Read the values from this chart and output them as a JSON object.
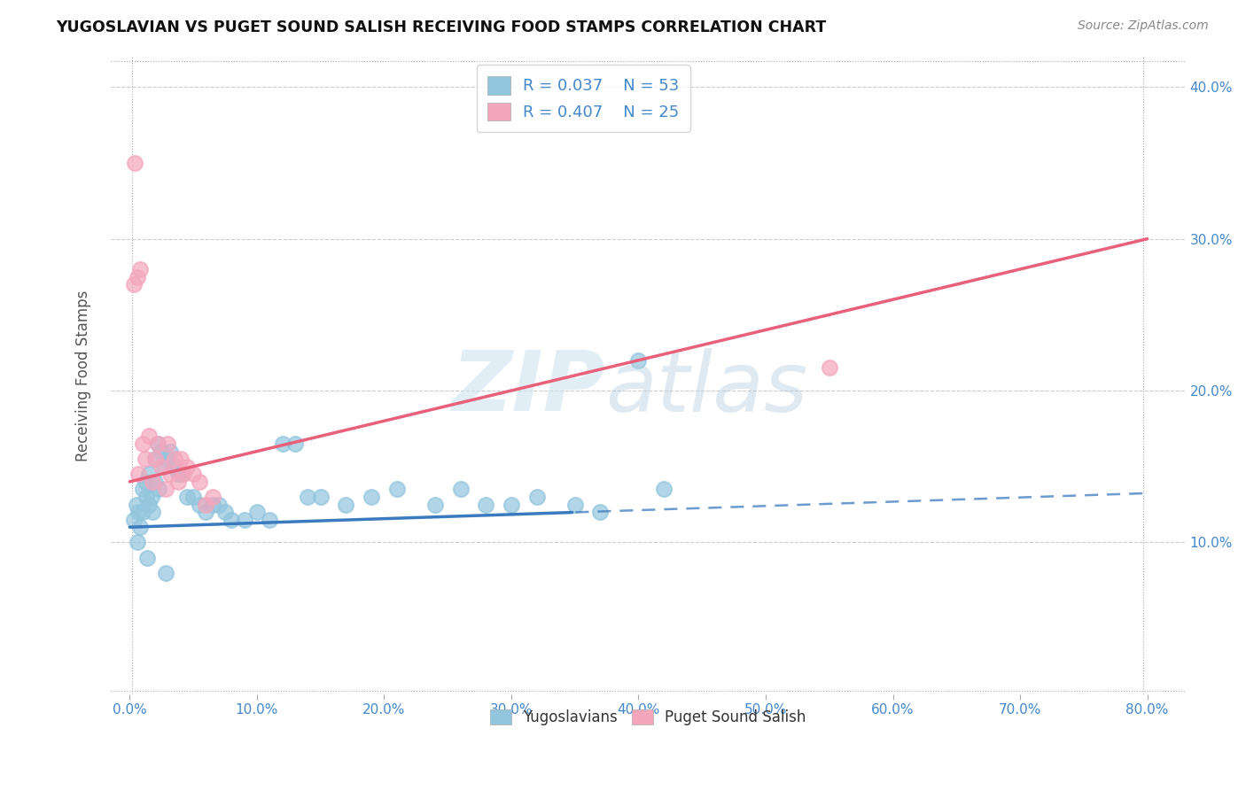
{
  "title": "YUGOSLAVIAN VS PUGET SOUND SALISH RECEIVING FOOD STAMPS CORRELATION CHART",
  "source": "Source: ZipAtlas.com",
  "ylabel": "Receiving Food Stamps",
  "r_blue": 0.037,
  "n_blue": 53,
  "r_pink": 0.407,
  "n_pink": 25,
  "legend1_label": "Yugoslavians",
  "legend2_label": "Puget Sound Salish",
  "blue_color": "#92c5de",
  "pink_color": "#f4a6bd",
  "blue_line_color": "#3a7abf",
  "pink_line_color": "#e8607a",
  "blue_dots_x": [
    0.3,
    0.5,
    0.7,
    0.8,
    1.0,
    1.0,
    1.2,
    1.3,
    1.5,
    1.5,
    1.7,
    1.8,
    2.0,
    2.0,
    2.2,
    2.3,
    2.5,
    2.7,
    3.0,
    3.2,
    3.5,
    3.8,
    4.0,
    4.5,
    5.0,
    5.5,
    6.0,
    6.5,
    7.0,
    7.5,
    8.0,
    9.0,
    10.0,
    11.0,
    12.0,
    13.0,
    14.0,
    15.0,
    17.0,
    19.0,
    21.0,
    24.0,
    26.0,
    28.0,
    30.0,
    32.0,
    35.0,
    37.0,
    40.0,
    42.0,
    0.6,
    1.4,
    2.8
  ],
  "blue_dots_y": [
    11.5,
    12.5,
    12.0,
    11.0,
    13.5,
    12.0,
    14.0,
    13.0,
    14.5,
    12.5,
    13.0,
    12.0,
    15.5,
    14.0,
    16.5,
    13.5,
    16.0,
    15.0,
    15.5,
    16.0,
    15.0,
    14.5,
    14.5,
    13.0,
    13.0,
    12.5,
    12.0,
    12.5,
    12.5,
    12.0,
    11.5,
    11.5,
    12.0,
    11.5,
    16.5,
    16.5,
    13.0,
    13.0,
    12.5,
    13.0,
    13.5,
    12.5,
    13.5,
    12.5,
    12.5,
    13.0,
    12.5,
    12.0,
    22.0,
    13.5,
    10.0,
    9.0,
    8.0
  ],
  "pink_dots_x": [
    0.4,
    0.6,
    0.8,
    1.0,
    1.2,
    1.5,
    1.8,
    2.0,
    2.2,
    2.5,
    2.8,
    3.0,
    3.2,
    3.5,
    3.8,
    4.0,
    4.2,
    4.5,
    5.0,
    5.5,
    6.0,
    6.5,
    55.0,
    0.3,
    0.7
  ],
  "pink_dots_y": [
    35.0,
    27.5,
    28.0,
    16.5,
    15.5,
    17.0,
    14.0,
    15.5,
    16.5,
    15.0,
    13.5,
    16.5,
    14.5,
    15.5,
    14.0,
    15.5,
    14.5,
    15.0,
    14.5,
    14.0,
    12.5,
    13.0,
    21.5,
    27.0,
    14.5
  ],
  "xmin": 0.0,
  "xmax": 80.0,
  "ymin": 0.0,
  "ymax": 42.0,
  "xticks": [
    0,
    10,
    20,
    30,
    40,
    50,
    60,
    70,
    80
  ],
  "yticks_right": [
    10,
    20,
    30,
    40
  ],
  "blue_solid_end": 35,
  "pink_solid_end": 80,
  "pink_intercept": 14.0,
  "pink_slope": 0.2,
  "blue_intercept": 11.0,
  "blue_slope": 0.028
}
